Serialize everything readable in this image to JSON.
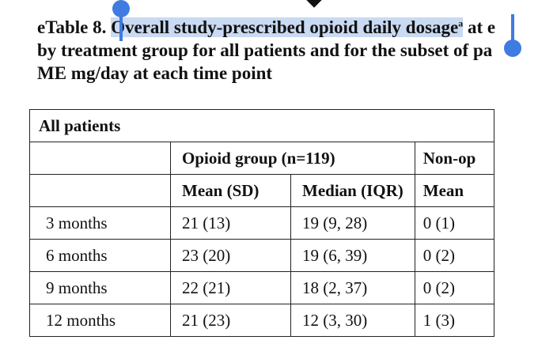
{
  "caption": {
    "prefix": "eTable 8. ",
    "selected_text": "Overall study-prescribed opioid daily dosage",
    "superscript": "a",
    "after_selection": " at e",
    "line2": "by treatment group for all patients and for the subset of pa",
    "line3": "ME mg/day at each time point"
  },
  "table": {
    "section_label": "All patients",
    "group_opioid": "Opioid group (n=119)",
    "group_nonopioid": "Non-op",
    "sub_headers": [
      "Mean (SD)",
      "Median (IQR)",
      "Mean"
    ],
    "rows": [
      {
        "label": "3 months",
        "mean_sd": "21 (13)",
        "median_iqr": "19 (9, 28)",
        "nonopioid_mean": "0 (1)"
      },
      {
        "label": "6 months",
        "mean_sd": "23 (20)",
        "median_iqr": "19 (6, 39)",
        "nonopioid_mean": "0 (2)"
      },
      {
        "label": "9 months",
        "mean_sd": "22 (21)",
        "median_iqr": "18 (2, 37)",
        "nonopioid_mean": "0 (2)"
      },
      {
        "label": "12 months",
        "mean_sd": "21 (23)",
        "median_iqr": "12 (3, 30)",
        "nonopioid_mean": "1 (3)"
      }
    ]
  },
  "colors": {
    "selection_highlight": "#c9daf2",
    "selection_handle": "#3f7be0"
  }
}
